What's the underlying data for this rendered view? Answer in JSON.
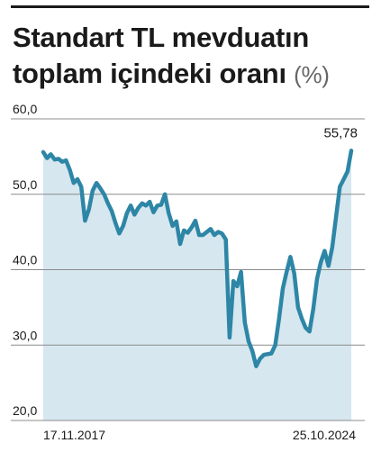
{
  "header": {
    "title": "Standart TL mevduatın toplam içindeki oranı",
    "unit": "(%)"
  },
  "chart_data": {
    "type": "area",
    "title": "Standart TL mevduatın toplam içindeki oranı (%)",
    "xlabel": "",
    "ylabel": "",
    "ylim": [
      20,
      60
    ],
    "yticks": [
      20,
      30,
      40,
      50,
      60
    ],
    "ytick_labels": [
      "20,0",
      "30,0",
      "40,0",
      "50,0",
      "60,0"
    ],
    "x_start_label": "17.11.2017",
    "x_end_label": "25.10.2024",
    "end_value_label": "55,78",
    "grid": true,
    "colors": {
      "line": "#2e86a6",
      "fill": "#d6e7ef",
      "grid": "#8c8c8c"
    },
    "series": [
      {
        "values": [
          55.6,
          54.8,
          55.3,
          54.6,
          54.7,
          54.3,
          54.5,
          53.2,
          51.5,
          52.0,
          51.0,
          46.5,
          48.0,
          50.5,
          51.5,
          50.8,
          50.0,
          48.8,
          47.8,
          46.2,
          44.8,
          45.8,
          47.5,
          48.5,
          47.3,
          48.2,
          48.8,
          48.5,
          49.0,
          47.6,
          48.5,
          48.6,
          50.0,
          47.5,
          45.8,
          46.4,
          43.4,
          45.2,
          44.9,
          45.6,
          46.5,
          44.6,
          44.6,
          45.0,
          45.4,
          44.6,
          45.0,
          44.8,
          44.0,
          31.0,
          38.5,
          37.8,
          39.7,
          33.0,
          30.5,
          29.2,
          27.2,
          28.2,
          28.7,
          28.8,
          28.9,
          30.0,
          33.5,
          37.5,
          39.7,
          41.7,
          39.5,
          35.0,
          33.5,
          32.3,
          31.8,
          34.8,
          38.8,
          41.0,
          42.5,
          40.5,
          43.0,
          47.0,
          51.0,
          52.0,
          53.0,
          55.78
        ]
      }
    ]
  }
}
